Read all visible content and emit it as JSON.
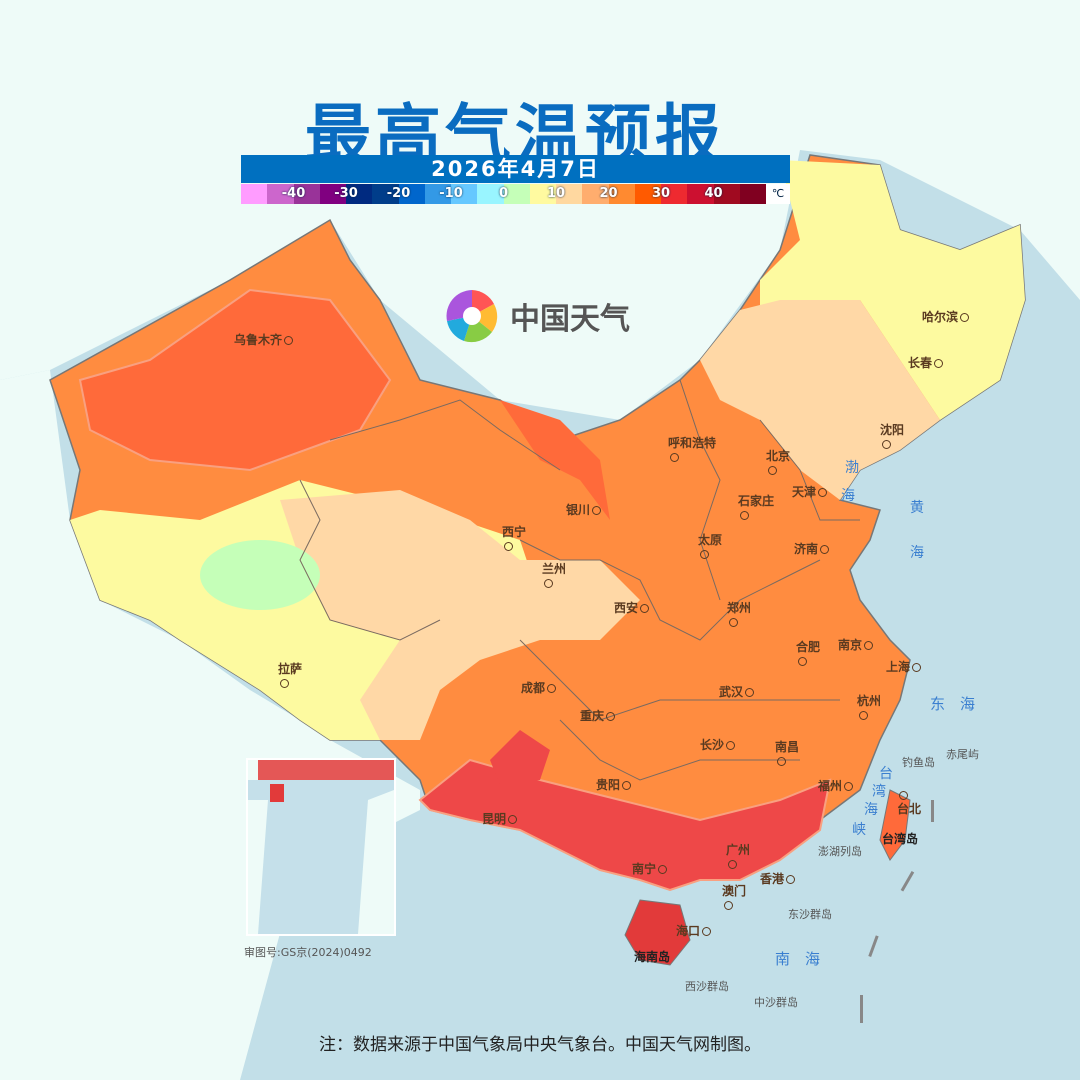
{
  "title": "最高气温预报",
  "date": "2026年4月7日",
  "legend": {
    "unit": "℃",
    "labels": [
      "-40",
      "-30",
      "-20",
      "-10",
      "0",
      "10",
      "20",
      "30",
      "40"
    ],
    "colors": [
      "#ff9cff",
      "#cc66cc",
      "#993399",
      "#800080",
      "#002a80",
      "#003d8a",
      "#0066cc",
      "#3399e6",
      "#66c8ff",
      "#99f5ff",
      "#c5ffb8",
      "#fffaa0",
      "#ffd8a0",
      "#ffad6e",
      "#ff8a30",
      "#ff5a00",
      "#ee2a30",
      "#cc1030",
      "#a00a20",
      "#800020"
    ]
  },
  "brand": "中国天气",
  "cities": [
    "乌鲁木齐",
    "哈尔滨",
    "长春",
    "沈阳",
    "呼和浩特",
    "北京",
    "天津",
    "石家庄",
    "太原",
    "济南",
    "银川",
    "西宁",
    "兰州",
    "西安",
    "郑州",
    "合肥",
    "南京",
    "上海",
    "杭州",
    "拉萨",
    "成都",
    "重庆",
    "武汉",
    "长沙",
    "南昌",
    "贵阳",
    "福州",
    "昆明",
    "南宁",
    "广州",
    "香港",
    "澳门",
    "海口",
    "台北"
  ],
  "seas": [
    "渤",
    "海",
    "黄",
    "海",
    "东　海",
    "南　海",
    "台",
    "湾",
    "海",
    "峡"
  ],
  "islands": [
    "钓鱼岛",
    "赤尾屿",
    "澎湖列岛",
    "台湾岛",
    "东沙群岛",
    "西沙群岛",
    "中沙群岛",
    "海南岛"
  ],
  "map_number": "审图号:GS京(2024)0492",
  "note": "注：数据来源于中国气象局中央气象台。中国天气网制图。"
}
